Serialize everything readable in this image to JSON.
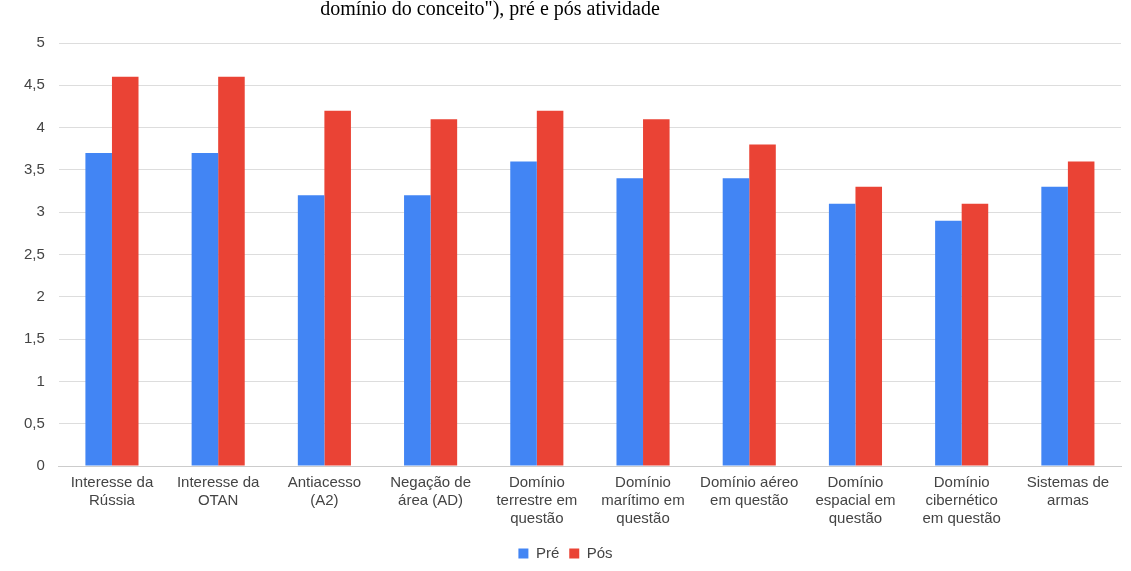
{
  "chart_data": {
    "type": "bar",
    "title": "domínio do conceito\"), pré e pós atividade",
    "categories": [
      "Interesse da Rússia",
      "Interesse da OTAN",
      "Antiacesso (A2)",
      "Negação de área (AD)",
      "Domínio terrestre em questão",
      "Domínio marítimo em questão",
      "Domínio aéreo em questão",
      "Domínio espacial em questão",
      "Domínio cibernético em questão",
      "Sistemas de armas"
    ],
    "series": [
      {
        "name": "Pré",
        "color": "#4285f4",
        "values": [
          3.7,
          3.7,
          3.2,
          3.2,
          3.6,
          3.4,
          3.4,
          3.1,
          2.9,
          3.3
        ]
      },
      {
        "name": "Pós",
        "color": "#ea4335",
        "values": [
          4.6,
          4.6,
          4.2,
          4.1,
          4.2,
          4.1,
          3.8,
          3.3,
          3.1,
          3.6
        ]
      }
    ],
    "ylim": [
      0,
      5
    ],
    "yticks": [
      0,
      {
        "value": 0.5,
        "label": "0,5"
      },
      1,
      {
        "value": 1.5,
        "label": "1,5"
      },
      2,
      {
        "value": 2.5,
        "label": "2,5"
      },
      3,
      {
        "value": 3.5,
        "label": "3,5"
      },
      4,
      {
        "value": 4.5,
        "label": "4,5"
      },
      5
    ],
    "grid": "y",
    "legend": "bottom"
  }
}
